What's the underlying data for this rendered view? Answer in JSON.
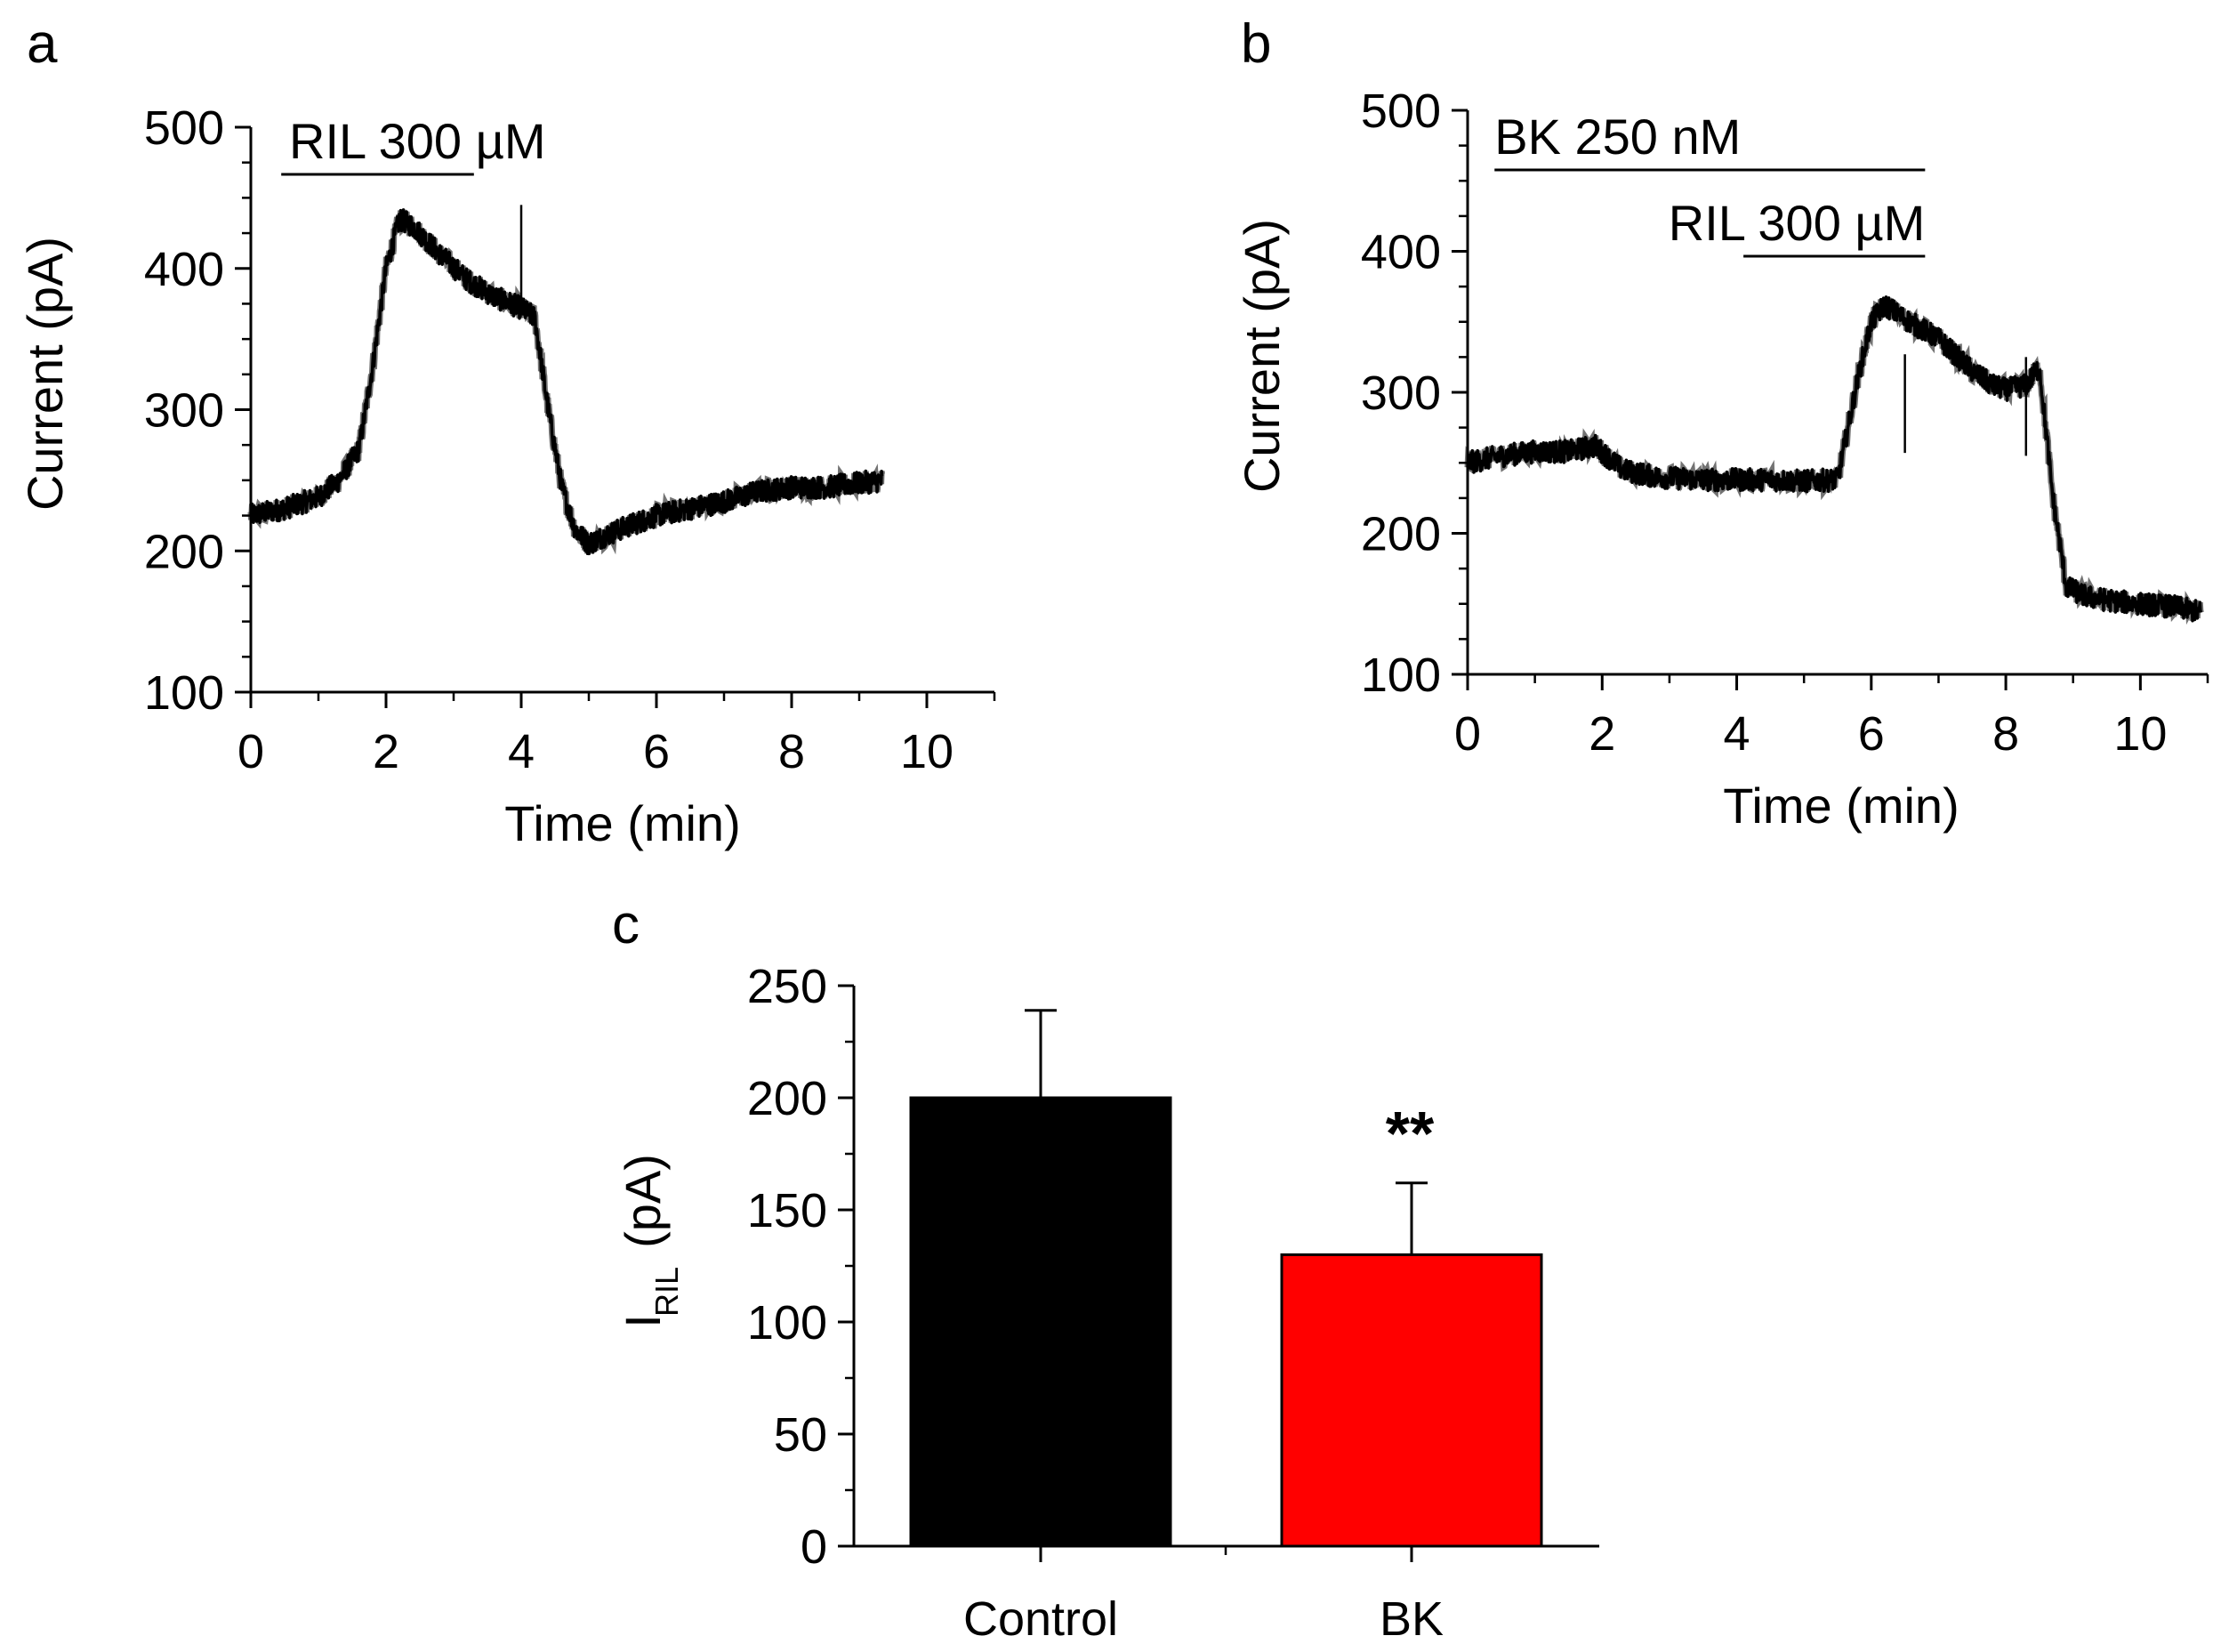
{
  "chart_data": [
    {
      "panel": "a",
      "type": "line",
      "xlabel": "Time (min)",
      "ylabel": "Current (pA)",
      "xlim": [
        0,
        11
      ],
      "ylim": [
        100,
        500
      ],
      "xticks": [
        "0",
        "2",
        "4",
        "6",
        "8",
        "10"
      ],
      "yticks": [
        "100",
        "200",
        "300",
        "400",
        "500"
      ],
      "annotations": [
        {
          "text": "RIL 300 µM",
          "start": 0.45,
          "end": 3.3
        }
      ],
      "series": [
        {
          "x": [
            0,
            0.5,
            1.0,
            1.3,
            1.6,
            1.8,
            2.0,
            2.2,
            2.4,
            2.8,
            3.2,
            3.6,
            4.0,
            4.2,
            4.4,
            4.6,
            4.8,
            5.0,
            5.2,
            5.6,
            6.0,
            6.5,
            7.0,
            7.5,
            8.0,
            8.5,
            9.0,
            9.35
          ],
          "y": [
            225,
            230,
            238,
            250,
            272,
            330,
            400,
            435,
            430,
            410,
            392,
            380,
            372,
            365,
            300,
            245,
            215,
            205,
            210,
            218,
            225,
            230,
            235,
            242,
            245,
            245,
            248,
            250
          ],
          "spikes": [
            {
              "x": 4.0,
              "y": 445
            }
          ]
        }
      ]
    },
    {
      "panel": "b",
      "type": "line",
      "xlabel": "Time (min)",
      "ylabel": "Current (pA)",
      "xlim": [
        0,
        11
      ],
      "ylim": [
        100,
        500
      ],
      "xticks": [
        "0",
        "2",
        "4",
        "6",
        "8",
        "10"
      ],
      "yticks": [
        "100",
        "200",
        "300",
        "400",
        "500"
      ],
      "annotations": [
        {
          "text": "BK 250 nM",
          "start": 0.4,
          "end": 6.8
        },
        {
          "text": "RIL 300 µM",
          "start": 4.1,
          "end": 6.8
        }
      ],
      "series": [
        {
          "x": [
            0,
            0.5,
            1.0,
            1.5,
            1.9,
            2.3,
            2.8,
            3.5,
            4.0,
            4.5,
            5.0,
            5.5,
            5.8,
            6.0,
            6.2,
            6.5,
            7.0,
            7.5,
            7.8,
            8.0,
            8.3,
            8.5,
            8.7,
            8.9,
            9.2,
            9.6,
            10.0,
            10.5,
            10.9
          ],
          "y": [
            250,
            255,
            258,
            258,
            262,
            245,
            240,
            238,
            238,
            238,
            237,
            238,
            310,
            350,
            362,
            352,
            338,
            315,
            305,
            302,
            305,
            318,
            225,
            162,
            155,
            152,
            150,
            148,
            144
          ],
          "spikes": [
            {
              "x": 6.5,
              "y": 327
            },
            {
              "x": 8.3,
              "y": 325
            }
          ]
        }
      ]
    },
    {
      "panel": "c",
      "type": "bar",
      "categories": [
        "Control",
        "BK"
      ],
      "values": [
        200,
        130
      ],
      "errors": [
        39,
        32
      ],
      "colors": [
        "#000000",
        "#ff0000"
      ],
      "ylabel_main": "I",
      "ylabel_sub": "RIL",
      "ylabel_unit": "(pA)",
      "ylim": [
        0,
        250
      ],
      "yticks": [
        "0",
        "50",
        "100",
        "150",
        "200",
        "250"
      ],
      "significance": "**"
    }
  ]
}
